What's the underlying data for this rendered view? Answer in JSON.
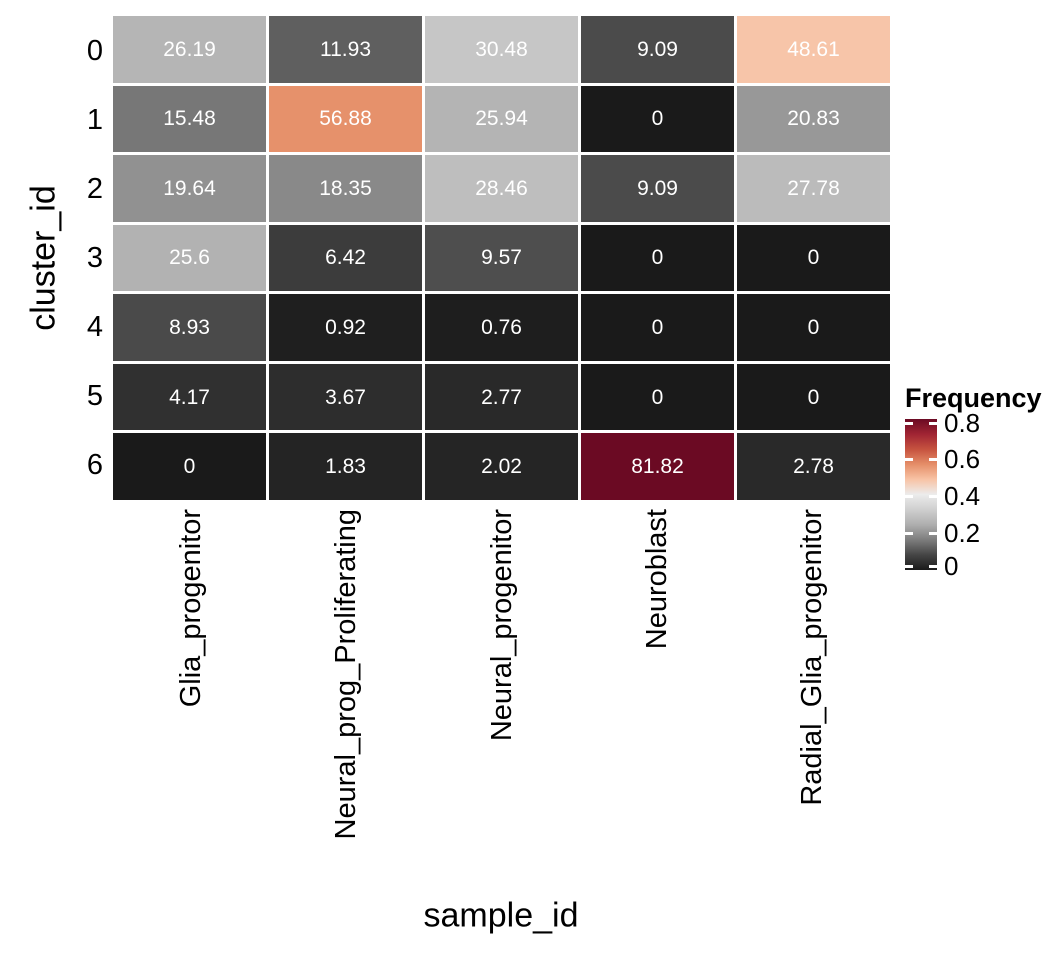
{
  "figure": {
    "background": "#ffffff",
    "axis_text_color": "#000000",
    "cell_text_color": "#ffffff"
  },
  "chart_data": {
    "type": "heatmap",
    "title": "",
    "xlabel": "sample_id",
    "ylabel": "cluster_id",
    "rows": [
      "0",
      "1",
      "2",
      "3",
      "4",
      "5",
      "6"
    ],
    "columns": [
      "Glia_progenitor",
      "Neural_prog_Proliferating",
      "Neural_progenitor",
      "Neuroblast",
      "Radial_Glia_progenitor"
    ],
    "values": [
      [
        26.19,
        11.93,
        30.48,
        9.09,
        48.61
      ],
      [
        15.48,
        56.88,
        25.94,
        0,
        20.83
      ],
      [
        19.64,
        18.35,
        28.46,
        9.09,
        27.78
      ],
      [
        25.6,
        6.42,
        9.57,
        0,
        0
      ],
      [
        8.93,
        0.92,
        0.76,
        0,
        0
      ],
      [
        4.17,
        3.67,
        2.77,
        0,
        0
      ],
      [
        0,
        1.83,
        2.02,
        81.82,
        2.78
      ]
    ],
    "cell_labels": [
      [
        "26.19",
        "11.93",
        "30.48",
        "9.09",
        "48.61"
      ],
      [
        "15.48",
        "56.88",
        "25.94",
        "0",
        "20.83"
      ],
      [
        "19.64",
        "18.35",
        "28.46",
        "9.09",
        "27.78"
      ],
      [
        "25.6",
        "6.42",
        "9.57",
        "0",
        "0"
      ],
      [
        "8.93",
        "0.92",
        "0.76",
        "0",
        "0"
      ],
      [
        "4.17",
        "3.67",
        "2.77",
        "0",
        "0"
      ],
      [
        "0",
        "1.83",
        "2.02",
        "81.82",
        "2.78"
      ]
    ],
    "values_unit": "percent",
    "legend": {
      "title": "Frequency",
      "position": "right",
      "tick_labels": [
        "0.8",
        "0.6",
        "0.4",
        "0.2",
        "0"
      ],
      "tick_values": [
        0.8,
        0.6,
        0.4,
        0.2,
        0
      ],
      "domain": [
        0,
        0.8182
      ]
    },
    "colormap": {
      "description": "dark-gray to white to salmon to dark-red",
      "stops": [
        "#1a1a1a",
        "#454545",
        "#7d7d7d",
        "#aeaeae",
        "#cfcfcf",
        "#ececec",
        "#f8c3a5",
        "#e58e68",
        "#c6523f",
        "#a02433",
        "#6b0a23"
      ]
    },
    "gridlines": false
  }
}
